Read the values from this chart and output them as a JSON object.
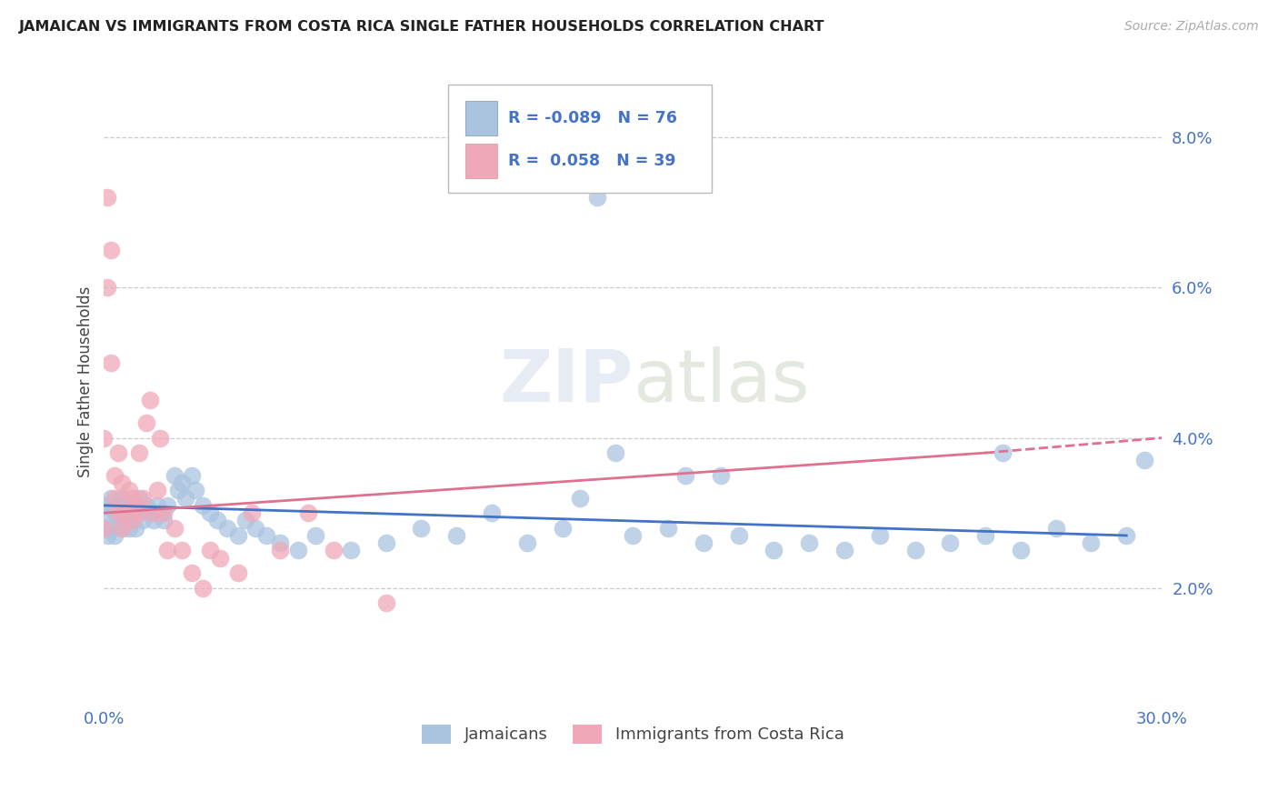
{
  "title": "JAMAICAN VS IMMIGRANTS FROM COSTA RICA SINGLE FATHER HOUSEHOLDS CORRELATION CHART",
  "source": "Source: ZipAtlas.com",
  "ylabel": "Single Father Households",
  "ytick_labels": [
    "2.0%",
    "4.0%",
    "6.0%",
    "8.0%"
  ],
  "ytick_values": [
    0.02,
    0.04,
    0.06,
    0.08
  ],
  "xlim": [
    0.0,
    0.3
  ],
  "ylim": [
    0.005,
    0.09
  ],
  "legend_blue_r": "-0.089",
  "legend_blue_n": "76",
  "legend_pink_r": "0.058",
  "legend_pink_n": "39",
  "color_blue": "#aac4e0",
  "color_pink": "#f0a8b8",
  "line_blue": "#4472c4",
  "line_pink": "#e07090",
  "background_color": "#ffffff",
  "grid_color": "#cccccc",
  "blue_x": [
    0.0,
    0.0,
    0.001,
    0.001,
    0.002,
    0.002,
    0.003,
    0.003,
    0.004,
    0.004,
    0.005,
    0.005,
    0.005,
    0.006,
    0.006,
    0.007,
    0.007,
    0.008,
    0.008,
    0.009,
    0.01,
    0.01,
    0.011,
    0.012,
    0.013,
    0.014,
    0.015,
    0.016,
    0.017,
    0.018,
    0.02,
    0.021,
    0.022,
    0.023,
    0.025,
    0.026,
    0.028,
    0.03,
    0.032,
    0.035,
    0.038,
    0.04,
    0.043,
    0.046,
    0.05,
    0.055,
    0.06,
    0.07,
    0.08,
    0.09,
    0.1,
    0.11,
    0.12,
    0.13,
    0.14,
    0.15,
    0.16,
    0.17,
    0.18,
    0.19,
    0.2,
    0.21,
    0.22,
    0.23,
    0.24,
    0.25,
    0.26,
    0.27,
    0.28,
    0.29,
    0.145,
    0.135,
    0.165,
    0.175,
    0.255,
    0.295
  ],
  "blue_y": [
    0.028,
    0.03,
    0.027,
    0.031,
    0.028,
    0.032,
    0.027,
    0.03,
    0.029,
    0.031,
    0.028,
    0.03,
    0.032,
    0.029,
    0.031,
    0.028,
    0.03,
    0.029,
    0.031,
    0.028,
    0.03,
    0.032,
    0.029,
    0.031,
    0.03,
    0.029,
    0.031,
    0.03,
    0.029,
    0.031,
    0.035,
    0.033,
    0.034,
    0.032,
    0.035,
    0.033,
    0.031,
    0.03,
    0.029,
    0.028,
    0.027,
    0.029,
    0.028,
    0.027,
    0.026,
    0.025,
    0.027,
    0.025,
    0.026,
    0.028,
    0.027,
    0.03,
    0.026,
    0.028,
    0.072,
    0.027,
    0.028,
    0.026,
    0.027,
    0.025,
    0.026,
    0.025,
    0.027,
    0.025,
    0.026,
    0.027,
    0.025,
    0.028,
    0.026,
    0.027,
    0.038,
    0.032,
    0.035,
    0.035,
    0.038,
    0.037
  ],
  "pink_x": [
    0.0,
    0.0,
    0.001,
    0.001,
    0.002,
    0.002,
    0.003,
    0.003,
    0.004,
    0.004,
    0.005,
    0.005,
    0.006,
    0.007,
    0.008,
    0.008,
    0.009,
    0.01,
    0.01,
    0.011,
    0.012,
    0.013,
    0.014,
    0.015,
    0.016,
    0.017,
    0.018,
    0.02,
    0.022,
    0.025,
    0.028,
    0.03,
    0.033,
    0.038,
    0.042,
    0.05,
    0.058,
    0.065,
    0.08
  ],
  "pink_y": [
    0.028,
    0.04,
    0.06,
    0.072,
    0.05,
    0.065,
    0.032,
    0.035,
    0.03,
    0.038,
    0.028,
    0.034,
    0.03,
    0.033,
    0.029,
    0.032,
    0.031,
    0.03,
    0.038,
    0.032,
    0.042,
    0.045,
    0.03,
    0.033,
    0.04,
    0.03,
    0.025,
    0.028,
    0.025,
    0.022,
    0.02,
    0.025,
    0.024,
    0.022,
    0.03,
    0.025,
    0.03,
    0.025,
    0.018
  ]
}
